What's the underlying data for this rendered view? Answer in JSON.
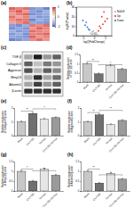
{
  "chart_data": [
    {
      "type": "heatmap",
      "title": "(a)",
      "cells": [
        [
          1.5,
          1.2,
          1.4,
          -1.3,
          -1.1,
          -1.5
        ],
        [
          1.2,
          1.6,
          1.0,
          -1.2,
          -1.4,
          -1.0
        ],
        [
          1.0,
          1.3,
          1.5,
          -1.4,
          -1.2,
          -1.1
        ],
        [
          1.4,
          0.9,
          1.2,
          -1.0,
          -1.3,
          -1.2
        ],
        [
          1.1,
          1.4,
          1.3,
          -1.5,
          -1.0,
          -1.2
        ],
        [
          0.9,
          1.1,
          1.4,
          -1.1,
          -1.2,
          -1.3
        ],
        [
          -1.2,
          -1.4,
          -1.0,
          1.3,
          1.1,
          1.4
        ],
        [
          -1.4,
          -1.1,
          -1.3,
          1.0,
          1.5,
          1.2
        ],
        [
          -1.0,
          -1.3,
          -1.2,
          1.4,
          1.2,
          1.1
        ],
        [
          -1.3,
          -1.0,
          -1.4,
          1.2,
          1.3,
          1.5
        ],
        [
          -1.1,
          -1.2,
          -1.3,
          1.5,
          1.0,
          1.2
        ],
        [
          -1.5,
          -1.3,
          -1.1,
          1.1,
          1.4,
          1.0
        ]
      ],
      "colors": [
        "#3b5fc0",
        "#ffffff",
        "#d73027"
      ],
      "colorbar_range": [
        -2,
        2
      ],
      "colorbar_ticks": [
        -2,
        0,
        2
      ]
    },
    {
      "type": "scatter",
      "title": "(b)",
      "x_label": "log2(FoldChange)",
      "y_label": "-log10(P value)",
      "xlim": [
        -8,
        8
      ],
      "xticks": [
        -5,
        0,
        5
      ],
      "ylim": [
        0,
        30
      ],
      "yticks": [
        0,
        10,
        20,
        30
      ],
      "legend": "right",
      "series": [
        {
          "name": "NoDiff",
          "color": "#b0b0b0",
          "x": [
            -1,
            -0.5,
            0,
            0.5,
            1,
            -1.5,
            1.5,
            -0.8,
            0.3,
            0.9,
            -0.2,
            0.6
          ],
          "values": [
            1,
            2,
            0.5,
            1.5,
            3,
            2.5,
            1,
            4,
            3,
            0.8,
            5,
            2
          ]
        },
        {
          "name": "Up",
          "color": "#e03030",
          "x": [
            2,
            3,
            4,
            5,
            2.5,
            3.5,
            6,
            4.5
          ],
          "values": [
            5,
            8,
            12,
            15,
            10,
            20,
            18,
            25
          ]
        },
        {
          "name": "Down",
          "color": "#3070d0",
          "x": [
            -2,
            -3,
            -4,
            -2.5,
            -3.5,
            -5
          ],
          "values": [
            6,
            9,
            11,
            7,
            14,
            16
          ]
        }
      ]
    },
    {
      "type": "blot",
      "title": "(c)",
      "rows": [
        {
          "name": "TGF-β",
          "values": [
            0.45,
            0.9,
            0.5,
            0.7
          ]
        },
        {
          "name": "Collagen II",
          "values": [
            0.7,
            0.35,
            0.6,
            0.5
          ]
        },
        {
          "name": "Aggrecan",
          "values": [
            0.75,
            0.4,
            0.7,
            0.55
          ]
        },
        {
          "name": "Mmp13",
          "values": [
            0.4,
            0.85,
            0.45,
            0.65
          ]
        },
        {
          "name": "Adamts5",
          "values": [
            0.45,
            0.8,
            0.5,
            0.7
          ]
        },
        {
          "name": "β-actin",
          "values": [
            0.85,
            0.85,
            0.85,
            0.85
          ]
        }
      ]
    },
    {
      "type": "bar",
      "title": "(d)",
      "y_label": "Relative expression of TGF-β/β-actin",
      "categories": [
        "Blank",
        "CILP OE",
        "Sh-Sox",
        "CILP OE+Sh-Sox"
      ],
      "values": [
        1.0,
        0.45,
        0.9,
        0.7
      ],
      "errors": [
        0.05,
        0.04,
        0.06,
        0.05
      ],
      "colors": [
        "#c8c8c8",
        "#707070",
        "#e6e6e6",
        "#9a9a9a"
      ],
      "ylim": [
        0,
        1.5
      ],
      "yticks": [
        0,
        0.5,
        1,
        1.5
      ],
      "significance": [
        {
          "label": "**",
          "from": 0,
          "to": 1
        },
        {
          "label": "*",
          "from": 1,
          "to": 3
        }
      ]
    },
    {
      "type": "bar",
      "title": "(e)",
      "y_label": "Relative expression of Collagen II/β-actin",
      "categories": [
        "Blank",
        "CILP OE",
        "Sh-Sox",
        "CILP OE+Sh-Sox"
      ],
      "values": [
        1.0,
        1.6,
        1.2,
        1.3
      ],
      "errors": [
        0.06,
        0.08,
        0.07,
        0.06
      ],
      "colors": [
        "#c8c8c8",
        "#707070",
        "#e6e6e6",
        "#9a9a9a"
      ],
      "ylim": [
        0,
        2
      ],
      "yticks": [
        0,
        1,
        2
      ],
      "significance": [
        {
          "label": "**",
          "from": 0,
          "to": 1
        },
        {
          "label": "*",
          "from": 1,
          "to": 3
        }
      ]
    },
    {
      "type": "bar",
      "title": "(f)",
      "y_label": "Relative expression of Aggrecan/β-actin",
      "categories": [
        "Blank",
        "CILP OE",
        "Sh-Sox",
        "CILP OE+Sh-Sox"
      ],
      "values": [
        1.0,
        1.5,
        0.8,
        1.1
      ],
      "errors": [
        0.05,
        0.07,
        0.05,
        0.06
      ],
      "colors": [
        "#c8c8c8",
        "#707070",
        "#e6e6e6",
        "#9a9a9a"
      ],
      "ylim": [
        0,
        2
      ],
      "yticks": [
        0,
        1,
        2
      ],
      "significance": [
        {
          "label": "**",
          "from": 0,
          "to": 1
        },
        {
          "label": "**",
          "from": 1,
          "to": 3
        }
      ]
    },
    {
      "type": "bar",
      "title": "(g)",
      "y_label": "Relative expression of Mmp13/β-actin",
      "categories": [
        "Blank",
        "CILP OE",
        "Sh-Sox",
        "CILP OE+Sh-Sox"
      ],
      "values": [
        1.0,
        0.5,
        1.1,
        0.8
      ],
      "errors": [
        0.05,
        0.04,
        0.06,
        0.05
      ],
      "colors": [
        "#c8c8c8",
        "#707070",
        "#e6e6e6",
        "#9a9a9a"
      ],
      "ylim": [
        0,
        1.5
      ],
      "yticks": [
        0,
        0.5,
        1,
        1.5
      ],
      "significance": [
        {
          "label": "*",
          "from": 0,
          "to": 1
        },
        {
          "label": "**",
          "from": 1,
          "to": 3
        }
      ]
    },
    {
      "type": "bar",
      "title": "(h)",
      "y_label": "Relative expression of Adamts5/β-actin",
      "categories": [
        "Blank",
        "CILP OE",
        "Sh-Sox",
        "CILP OE+Sh-Sox"
      ],
      "values": [
        1.0,
        0.4,
        0.9,
        0.6
      ],
      "errors": [
        0.05,
        0.03,
        0.05,
        0.04
      ],
      "colors": [
        "#c8c8c8",
        "#707070",
        "#e6e6e6",
        "#9a9a9a"
      ],
      "ylim": [
        0,
        1.5
      ],
      "yticks": [
        0,
        0.5,
        1,
        1.5
      ],
      "significance": [
        {
          "label": "**",
          "from": 0,
          "to": 1
        },
        {
          "label": "*",
          "from": 1,
          "to": 3
        }
      ]
    }
  ]
}
